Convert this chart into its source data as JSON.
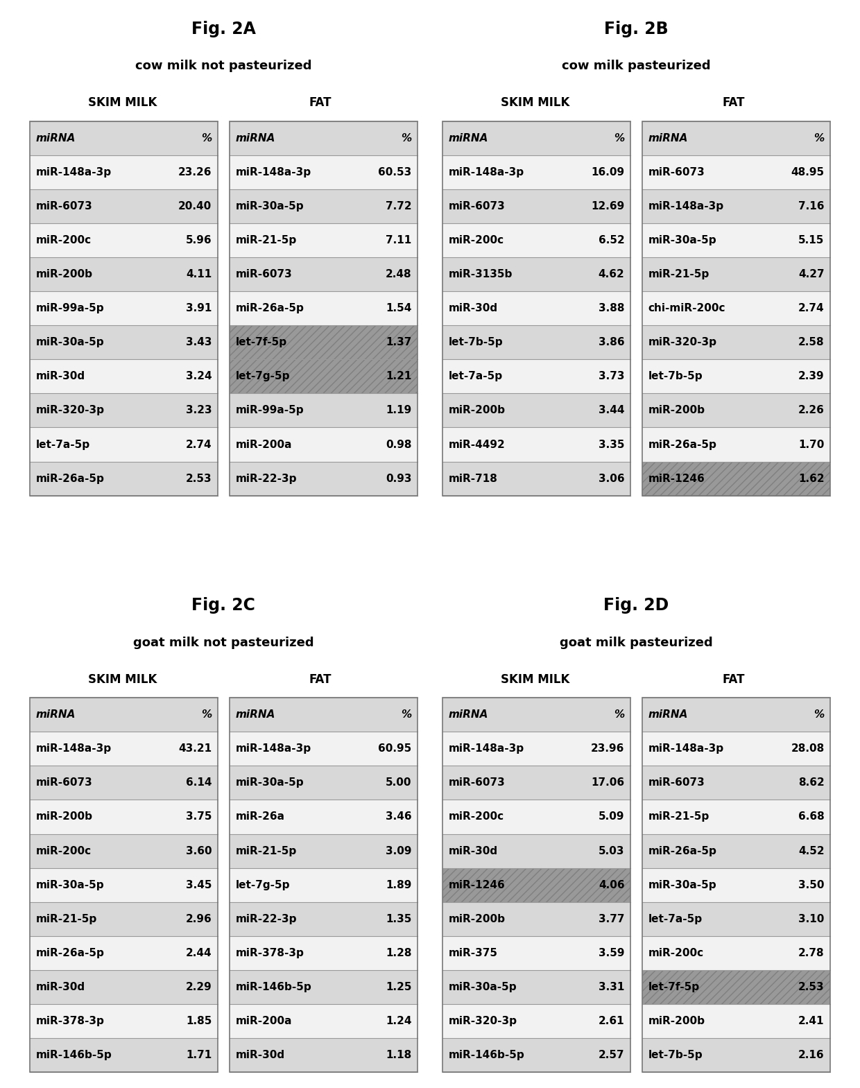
{
  "fig2A": {
    "title": "Fig. 2A",
    "subtitle": "cow milk not pasteurized",
    "skim_label": "SKIM MILK",
    "fat_label": "FAT",
    "skim": [
      [
        "miRNA",
        "%"
      ],
      [
        "miR-148a-3p",
        "23.26"
      ],
      [
        "miR-6073",
        "20.40"
      ],
      [
        "miR-200c",
        "5.96"
      ],
      [
        "miR-200b",
        "4.11"
      ],
      [
        "miR-99a-5p",
        "3.91"
      ],
      [
        "miR-30a-5p",
        "3.43"
      ],
      [
        "miR-30d",
        "3.24"
      ],
      [
        "miR-320-3p",
        "3.23"
      ],
      [
        "let-7a-5p",
        "2.74"
      ],
      [
        "miR-26a-5p",
        "2.53"
      ]
    ],
    "fat": [
      [
        "miRNA",
        "%"
      ],
      [
        "miR-148a-3p",
        "60.53"
      ],
      [
        "miR-30a-5p",
        "7.72"
      ],
      [
        "miR-21-5p",
        "7.11"
      ],
      [
        "miR-6073",
        "2.48"
      ],
      [
        "miR-26a-5p",
        "1.54"
      ],
      [
        "let-7f-5p",
        "1.37"
      ],
      [
        "let-7g-5p",
        "1.21"
      ],
      [
        "miR-99a-5p",
        "1.19"
      ],
      [
        "miR-200a",
        "0.98"
      ],
      [
        "miR-22-3p",
        "0.93"
      ]
    ],
    "fat_shaded_rows": [
      6,
      7
    ],
    "skim_shaded_rows": [],
    "fat_hatched_rows": [
      6,
      7
    ],
    "skim_hatched_rows": []
  },
  "fig2B": {
    "title": "Fig. 2B",
    "subtitle": "cow milk pasteurized",
    "skim_label": "SKIM MILK",
    "fat_label": "FAT",
    "skim": [
      [
        "miRNA",
        "%"
      ],
      [
        "miR-148a-3p",
        "16.09"
      ],
      [
        "miR-6073",
        "12.69"
      ],
      [
        "miR-200c",
        "6.52"
      ],
      [
        "miR-3135b",
        "4.62"
      ],
      [
        "miR-30d",
        "3.88"
      ],
      [
        "let-7b-5p",
        "3.86"
      ],
      [
        "let-7a-5p",
        "3.73"
      ],
      [
        "miR-200b",
        "3.44"
      ],
      [
        "miR-4492",
        "3.35"
      ],
      [
        "miR-718",
        "3.06"
      ]
    ],
    "fat": [
      [
        "miRNA",
        "%"
      ],
      [
        "miR-6073",
        "48.95"
      ],
      [
        "miR-148a-3p",
        "7.16"
      ],
      [
        "miR-30a-5p",
        "5.15"
      ],
      [
        "miR-21-5p",
        "4.27"
      ],
      [
        "chi-miR-200c",
        "2.74"
      ],
      [
        "miR-320-3p",
        "2.58"
      ],
      [
        "let-7b-5p",
        "2.39"
      ],
      [
        "miR-200b",
        "2.26"
      ],
      [
        "miR-26a-5p",
        "1.70"
      ],
      [
        "miR-1246",
        "1.62"
      ]
    ],
    "fat_shaded_rows": [
      10
    ],
    "skim_shaded_rows": [],
    "fat_hatched_rows": [
      10
    ],
    "skim_hatched_rows": []
  },
  "fig2C": {
    "title": "Fig. 2C",
    "subtitle": "goat milk not pasteurized",
    "skim_label": "SKIM MILK",
    "fat_label": "FAT",
    "skim": [
      [
        "miRNA",
        "%"
      ],
      [
        "miR-148a-3p",
        "43.21"
      ],
      [
        "miR-6073",
        "6.14"
      ],
      [
        "miR-200b",
        "3.75"
      ],
      [
        "miR-200c",
        "3.60"
      ],
      [
        "miR-30a-5p",
        "3.45"
      ],
      [
        "miR-21-5p",
        "2.96"
      ],
      [
        "miR-26a-5p",
        "2.44"
      ],
      [
        "miR-30d",
        "2.29"
      ],
      [
        "miR-378-3p",
        "1.85"
      ],
      [
        "miR-146b-5p",
        "1.71"
      ]
    ],
    "fat": [
      [
        "miRNA",
        "%"
      ],
      [
        "miR-148a-3p",
        "60.95"
      ],
      [
        "miR-30a-5p",
        "5.00"
      ],
      [
        "miR-26a",
        "3.46"
      ],
      [
        "miR-21-5p",
        "3.09"
      ],
      [
        "let-7g-5p",
        "1.89"
      ],
      [
        "miR-22-3p",
        "1.35"
      ],
      [
        "miR-378-3p",
        "1.28"
      ],
      [
        "miR-146b-5p",
        "1.25"
      ],
      [
        "miR-200a",
        "1.24"
      ],
      [
        "miR-30d",
        "1.18"
      ]
    ],
    "fat_shaded_rows": [],
    "skim_shaded_rows": [],
    "fat_hatched_rows": [],
    "skim_hatched_rows": []
  },
  "fig2D": {
    "title": "Fig. 2D",
    "subtitle": "goat milk pasteurized",
    "skim_label": "SKIM MILK",
    "fat_label": "FAT",
    "skim": [
      [
        "miRNA",
        "%"
      ],
      [
        "miR-148a-3p",
        "23.96"
      ],
      [
        "miR-6073",
        "17.06"
      ],
      [
        "miR-200c",
        "5.09"
      ],
      [
        "miR-30d",
        "5.03"
      ],
      [
        "miR-1246",
        "4.06"
      ],
      [
        "miR-200b",
        "3.77"
      ],
      [
        "miR-375",
        "3.59"
      ],
      [
        "miR-30a-5p",
        "3.31"
      ],
      [
        "miR-320-3p",
        "2.61"
      ],
      [
        "miR-146b-5p",
        "2.57"
      ]
    ],
    "fat": [
      [
        "miRNA",
        "%"
      ],
      [
        "miR-148a-3p",
        "28.08"
      ],
      [
        "miR-6073",
        "8.62"
      ],
      [
        "miR-21-5p",
        "6.68"
      ],
      [
        "miR-26a-5p",
        "4.52"
      ],
      [
        "miR-30a-5p",
        "3.50"
      ],
      [
        "let-7a-5p",
        "3.10"
      ],
      [
        "miR-200c",
        "2.78"
      ],
      [
        "let-7f-5p",
        "2.53"
      ],
      [
        "miR-200b",
        "2.41"
      ],
      [
        "let-7b-5p",
        "2.16"
      ]
    ],
    "fat_shaded_rows": [
      8
    ],
    "skim_shaded_rows": [
      5
    ],
    "fat_hatched_rows": [
      8
    ],
    "skim_hatched_rows": [
      5
    ]
  },
  "bg_white": "#ffffff",
  "bg_light_gray": "#e8e8e8",
  "bg_mid_gray": "#d0d0d0",
  "bg_dark_gray": "#a8a8a8",
  "border_color": "#888888"
}
